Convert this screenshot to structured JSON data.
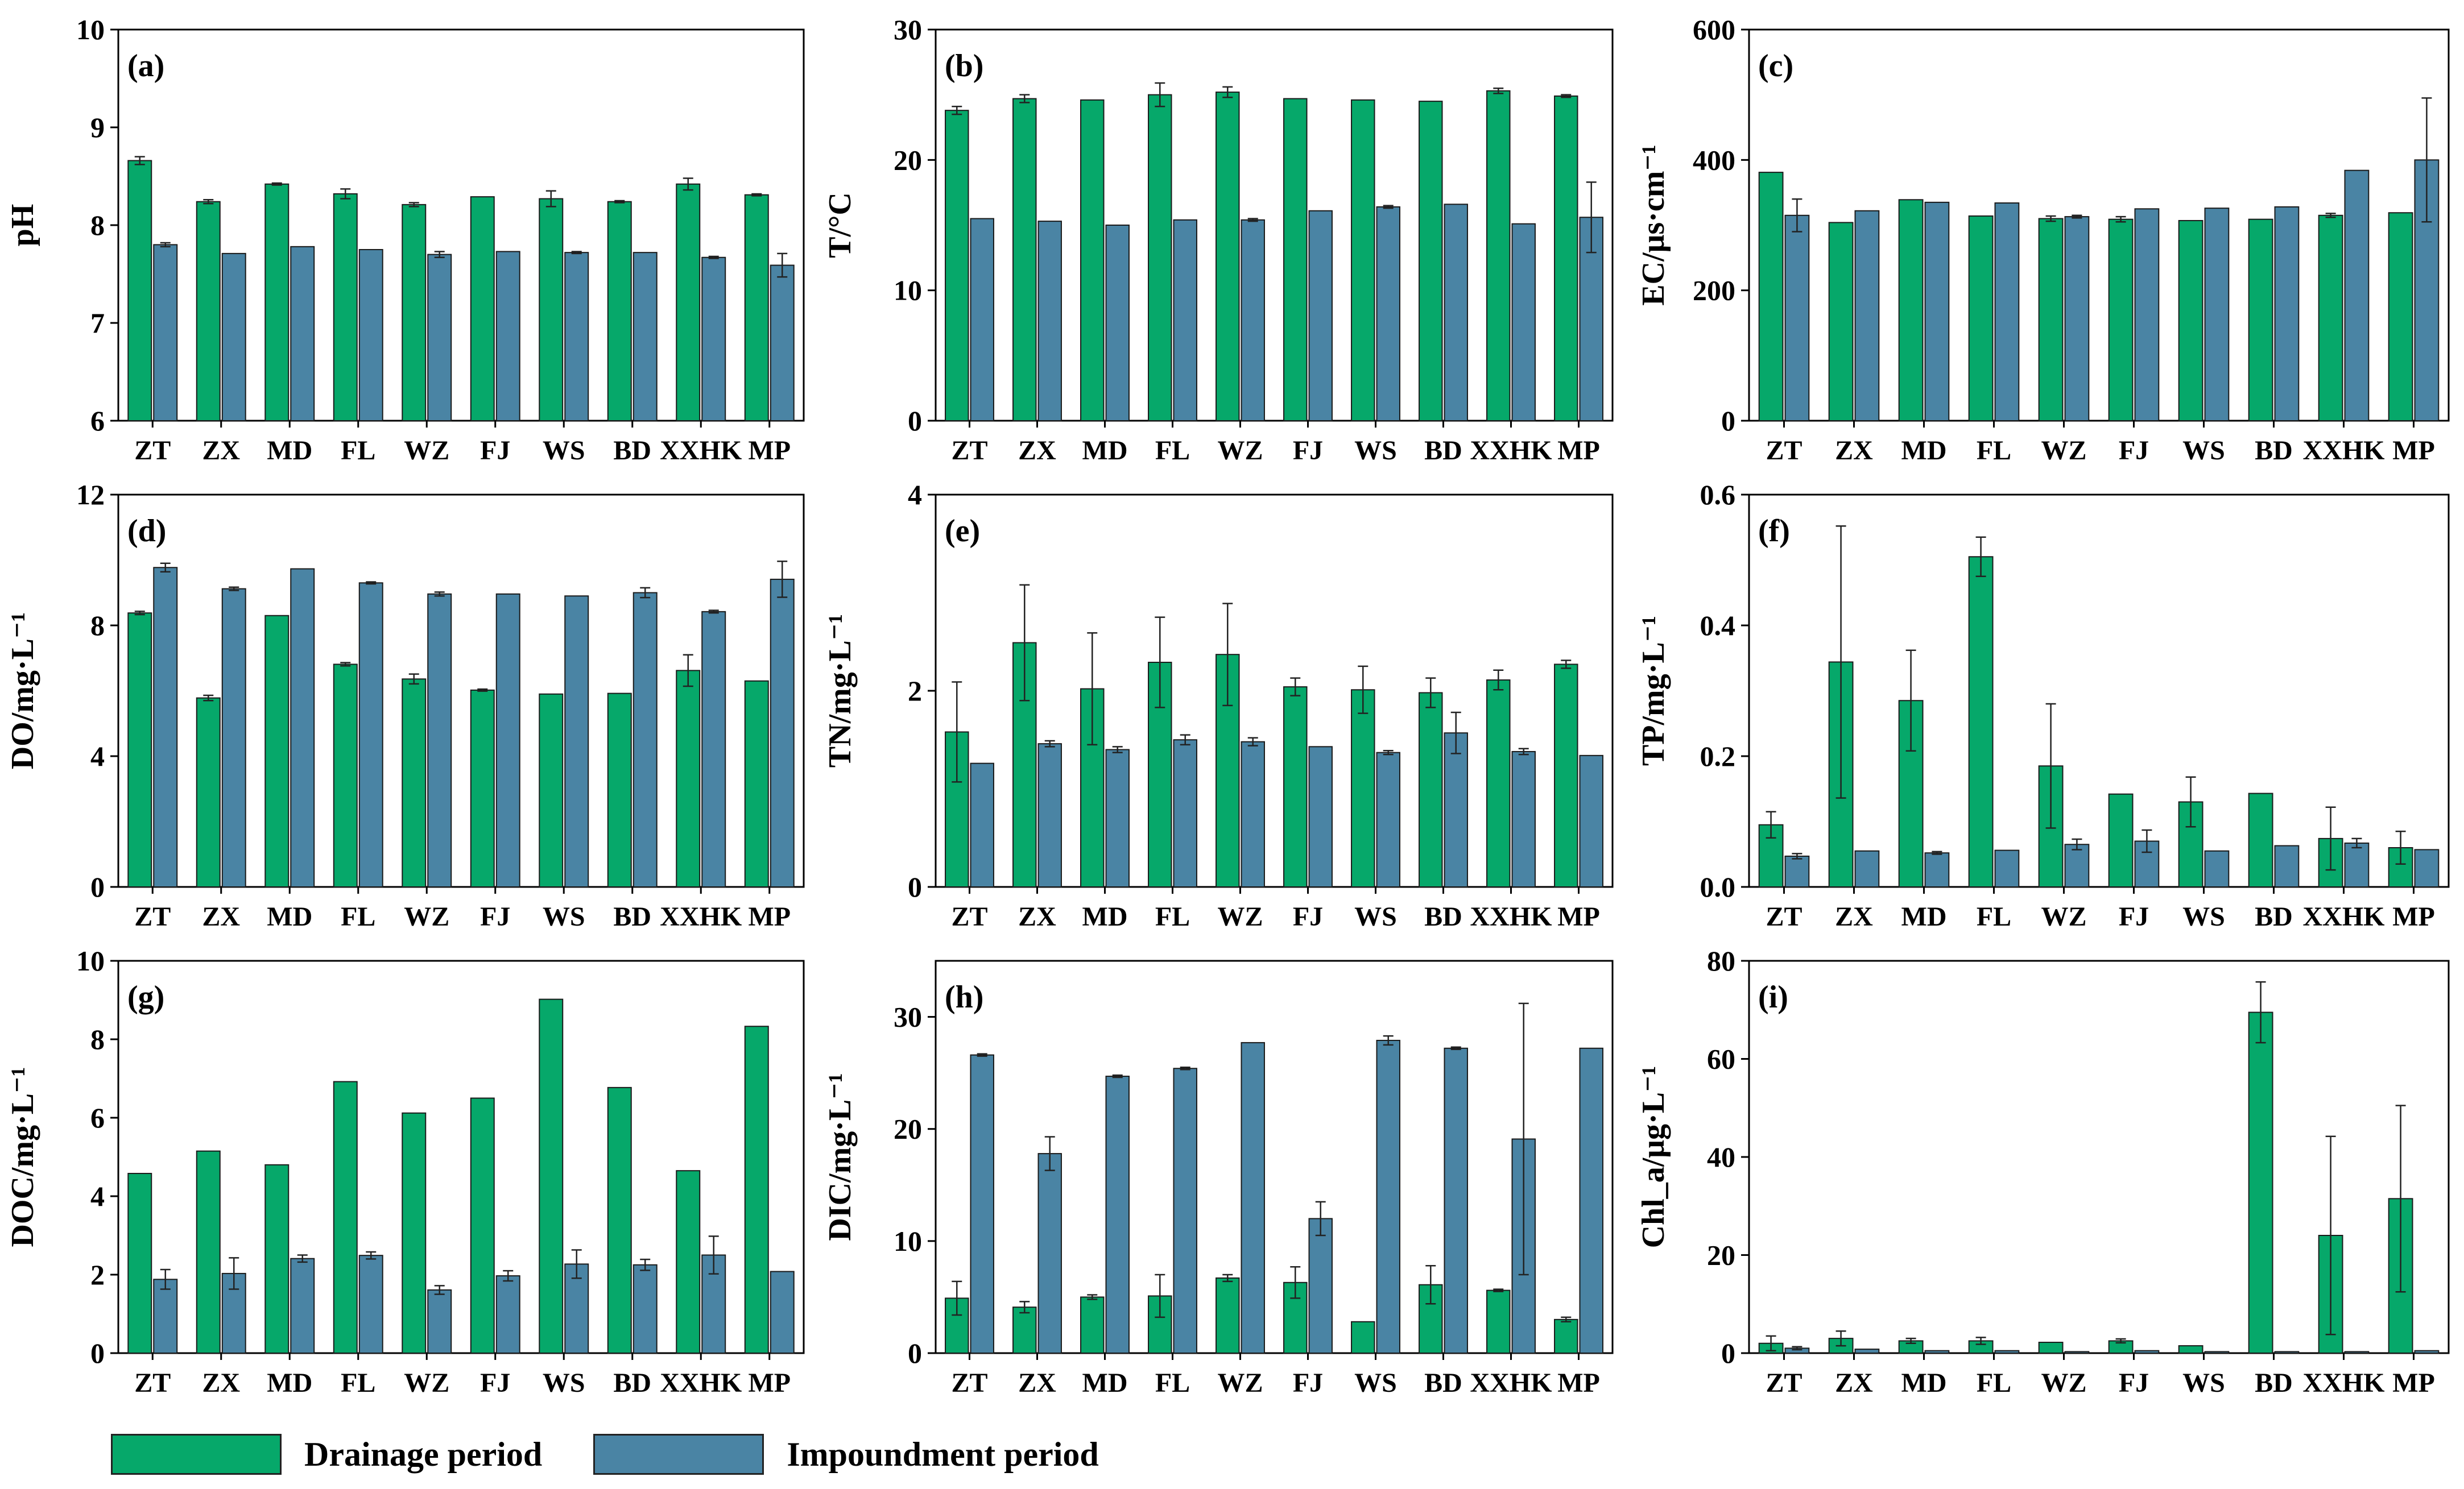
{
  "legend": {
    "drainage_label": "Drainage period",
    "impoundment_label": "Impoundment period"
  },
  "colors": {
    "drainage": "#06A86A",
    "impoundment": "#4A84A4",
    "axis": "#000000",
    "errorbar": "#222222"
  },
  "chart_data": [
    {
      "id": "a",
      "type": "bar",
      "tag": "(a)",
      "ylabel": "pH",
      "ylim": [
        6,
        10
      ],
      "yticks": [
        6,
        7,
        8,
        9,
        10
      ],
      "categories": [
        "ZT",
        "ZX",
        "MD",
        "FL",
        "WZ",
        "FJ",
        "WS",
        "BD",
        "XXHK",
        "MP"
      ],
      "series": [
        {
          "name": "Drainage period",
          "values": [
            8.66,
            8.24,
            8.42,
            8.32,
            8.21,
            8.29,
            8.27,
            8.24,
            8.42,
            8.31
          ],
          "errors": [
            0.04,
            0.02,
            0.01,
            0.05,
            0.02,
            0.0,
            0.08,
            0.01,
            0.06,
            0.01
          ]
        },
        {
          "name": "Impoundment period",
          "values": [
            7.8,
            7.71,
            7.78,
            7.75,
            7.7,
            7.73,
            7.72,
            7.72,
            7.67,
            7.59
          ],
          "errors": [
            0.02,
            0.0,
            0.0,
            0.0,
            0.03,
            0.0,
            0.01,
            0.0,
            0.01,
            0.12
          ]
        }
      ]
    },
    {
      "id": "b",
      "type": "bar",
      "tag": "(b)",
      "ylabel": "T/°C",
      "ylim": [
        0,
        30
      ],
      "yticks": [
        0,
        10,
        20,
        30
      ],
      "categories": [
        "ZT",
        "ZX",
        "MD",
        "FL",
        "WZ",
        "FJ",
        "WS",
        "BD",
        "XXHK",
        "MP"
      ],
      "series": [
        {
          "name": "Drainage period",
          "values": [
            23.8,
            24.7,
            24.6,
            25.0,
            25.2,
            24.7,
            24.6,
            24.5,
            25.3,
            24.9
          ],
          "errors": [
            0.3,
            0.3,
            0.0,
            0.9,
            0.4,
            0.0,
            0.0,
            0.0,
            0.2,
            0.1
          ]
        },
        {
          "name": "Impoundment period",
          "values": [
            15.5,
            15.3,
            15.0,
            15.4,
            15.4,
            16.1,
            16.4,
            16.6,
            15.1,
            15.6
          ],
          "errors": [
            0.0,
            0.0,
            0.0,
            0.0,
            0.1,
            0.0,
            0.1,
            0.0,
            0.0,
            2.7
          ]
        }
      ]
    },
    {
      "id": "c",
      "type": "bar",
      "tag": "(c)",
      "ylabel": "EC/μs·cm⁻¹",
      "ylim": [
        0,
        600
      ],
      "yticks": [
        0,
        200,
        400,
        600
      ],
      "categories": [
        "ZT",
        "ZX",
        "MD",
        "FL",
        "WZ",
        "FJ",
        "WS",
        "BD",
        "XXHK",
        "MP"
      ],
      "series": [
        {
          "name": "Drainage period",
          "values": [
            381,
            304,
            339,
            314,
            310,
            309,
            307,
            309,
            315,
            319
          ],
          "errors": [
            0,
            0,
            0,
            0,
            4,
            4,
            0,
            0,
            3,
            0
          ]
        },
        {
          "name": "Impoundment period",
          "values": [
            315,
            322,
            335,
            334,
            313,
            325,
            326,
            328,
            384,
            400
          ],
          "errors": [
            25,
            0,
            0,
            0,
            2,
            0,
            0,
            0,
            0,
            95
          ]
        }
      ]
    },
    {
      "id": "d",
      "type": "bar",
      "tag": "(d)",
      "ylabel": "DO/mg·L⁻¹",
      "ylim": [
        0,
        12
      ],
      "yticks": [
        0,
        4,
        8,
        12
      ],
      "categories": [
        "ZT",
        "ZX",
        "MD",
        "FL",
        "WZ",
        "FJ",
        "WS",
        "BD",
        "XXHK",
        "MP"
      ],
      "series": [
        {
          "name": "Drainage period",
          "values": [
            8.38,
            5.78,
            8.3,
            6.81,
            6.36,
            6.02,
            5.9,
            5.92,
            6.62,
            6.3
          ],
          "errors": [
            0.05,
            0.08,
            0.0,
            0.05,
            0.15,
            0.03,
            0.0,
            0.0,
            0.48,
            0.0
          ]
        },
        {
          "name": "Impoundment period",
          "values": [
            9.77,
            9.12,
            9.73,
            9.3,
            8.96,
            8.96,
            8.9,
            9.0,
            8.42,
            9.41
          ],
          "errors": [
            0.13,
            0.05,
            0.0,
            0.03,
            0.06,
            0.0,
            0.0,
            0.15,
            0.04,
            0.55
          ]
        }
      ]
    },
    {
      "id": "e",
      "type": "bar",
      "tag": "(e)",
      "ylabel": "TN/mg·L⁻¹",
      "ylim": [
        0,
        4
      ],
      "yticks": [
        0,
        2,
        4
      ],
      "categories": [
        "ZT",
        "ZX",
        "MD",
        "FL",
        "WZ",
        "FJ",
        "WS",
        "BD",
        "XXHK",
        "MP"
      ],
      "series": [
        {
          "name": "Drainage period",
          "values": [
            1.58,
            2.49,
            2.02,
            2.29,
            2.37,
            2.04,
            2.01,
            1.98,
            2.11,
            2.27
          ],
          "errors": [
            0.51,
            0.59,
            0.57,
            0.46,
            0.52,
            0.09,
            0.24,
            0.15,
            0.1,
            0.04
          ]
        },
        {
          "name": "Impoundment period",
          "values": [
            1.26,
            1.46,
            1.4,
            1.5,
            1.48,
            1.43,
            1.37,
            1.57,
            1.38,
            1.34
          ],
          "errors": [
            0.0,
            0.03,
            0.03,
            0.05,
            0.04,
            0.0,
            0.02,
            0.21,
            0.03,
            0.0
          ]
        }
      ]
    },
    {
      "id": "f",
      "type": "bar",
      "tag": "(f)",
      "ylabel": "TP/mg·L⁻¹",
      "ylim": [
        0.0,
        0.6
      ],
      "yticks": [
        0.0,
        0.2,
        0.4,
        0.6
      ],
      "categories": [
        "ZT",
        "ZX",
        "MD",
        "FL",
        "WZ",
        "FJ",
        "WS",
        "BD",
        "XXHK",
        "MP"
      ],
      "series": [
        {
          "name": "Drainage period",
          "values": [
            0.095,
            0.344,
            0.285,
            0.505,
            0.185,
            0.142,
            0.13,
            0.143,
            0.074,
            0.06
          ],
          "errors": [
            0.02,
            0.208,
            0.077,
            0.03,
            0.095,
            0.0,
            0.038,
            0.0,
            0.048,
            0.025
          ]
        },
        {
          "name": "Impoundment period",
          "values": [
            0.047,
            0.055,
            0.052,
            0.056,
            0.065,
            0.07,
            0.055,
            0.063,
            0.067,
            0.057
          ],
          "errors": [
            0.004,
            0.0,
            0.002,
            0.0,
            0.008,
            0.017,
            0.0,
            0.0,
            0.007,
            0.0
          ]
        }
      ]
    },
    {
      "id": "g",
      "type": "bar",
      "tag": "(g)",
      "ylabel": "DOC/mg·L⁻¹",
      "ylim": [
        0,
        10
      ],
      "yticks": [
        0,
        2,
        4,
        6,
        8,
        10
      ],
      "categories": [
        "ZT",
        "ZX",
        "MD",
        "FL",
        "WZ",
        "FJ",
        "WS",
        "BD",
        "XXHK",
        "MP"
      ],
      "series": [
        {
          "name": "Drainage period",
          "values": [
            4.58,
            5.15,
            4.8,
            6.92,
            6.12,
            6.5,
            9.02,
            6.77,
            4.65,
            8.33
          ],
          "errors": [
            0,
            0,
            0,
            0,
            0,
            0,
            0,
            0,
            0,
            0
          ]
        },
        {
          "name": "Impoundment period",
          "values": [
            1.88,
            2.03,
            2.41,
            2.49,
            1.61,
            1.97,
            2.27,
            2.25,
            2.5,
            2.08
          ],
          "errors": [
            0.25,
            0.4,
            0.09,
            0.09,
            0.11,
            0.13,
            0.36,
            0.14,
            0.48,
            0.0
          ]
        }
      ]
    },
    {
      "id": "h",
      "type": "bar",
      "tag": "(h)",
      "ylabel": "DIC/mg·L⁻¹",
      "ylim": [
        0,
        35
      ],
      "yticks": [
        0,
        10,
        20,
        30
      ],
      "categories": [
        "ZT",
        "ZX",
        "MD",
        "FL",
        "WZ",
        "FJ",
        "WS",
        "BD",
        "XXHK",
        "MP"
      ],
      "series": [
        {
          "name": "Drainage period",
          "values": [
            4.9,
            4.1,
            5.0,
            5.1,
            6.7,
            6.3,
            2.8,
            6.1,
            5.6,
            3.0
          ],
          "errors": [
            1.5,
            0.5,
            0.2,
            1.9,
            0.3,
            1.4,
            0.0,
            1.7,
            0.1,
            0.2
          ]
        },
        {
          "name": "Impoundment period",
          "values": [
            26.6,
            17.8,
            24.7,
            25.4,
            27.7,
            12.0,
            27.9,
            27.2,
            19.1,
            27.2
          ],
          "errors": [
            0.1,
            1.5,
            0.1,
            0.1,
            0.0,
            1.5,
            0.4,
            0.1,
            12.1,
            0.0
          ]
        }
      ]
    },
    {
      "id": "i",
      "type": "bar",
      "tag": "(i)",
      "ylabel": "Chl_a/μg·L⁻¹",
      "ylim": [
        0,
        80
      ],
      "yticks": [
        0,
        20,
        40,
        60,
        80
      ],
      "categories": [
        "ZT",
        "ZX",
        "MD",
        "FL",
        "WZ",
        "FJ",
        "WS",
        "BD",
        "XXHK",
        "MP"
      ],
      "series": [
        {
          "name": "Drainage period",
          "values": [
            2.0,
            3.0,
            2.5,
            2.5,
            2.2,
            2.5,
            1.5,
            69.5,
            24.0,
            31.5
          ],
          "errors": [
            1.5,
            1.5,
            0.5,
            0.7,
            0.0,
            0.4,
            0.0,
            6.2,
            20.2,
            19.0
          ]
        },
        {
          "name": "Impoundment period",
          "values": [
            1.0,
            0.8,
            0.5,
            0.5,
            0.3,
            0.5,
            0.3,
            0.3,
            0.3,
            0.5
          ],
          "errors": [
            0.3,
            0.0,
            0.0,
            0.0,
            0.0,
            0.0,
            0.0,
            0.0,
            0.0,
            0.0
          ]
        }
      ]
    }
  ]
}
